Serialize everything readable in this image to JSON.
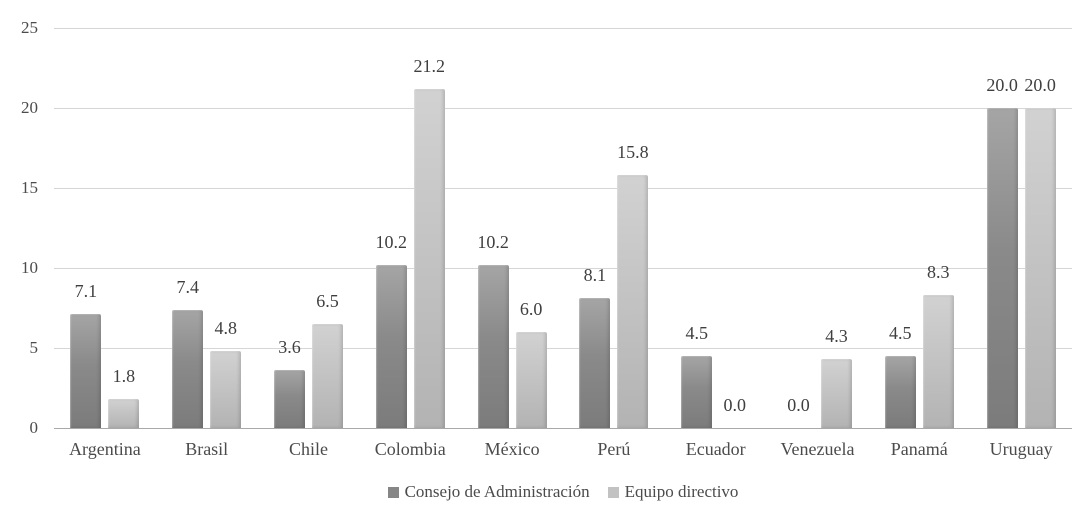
{
  "chart_data": {
    "type": "bar",
    "title": "",
    "categories": [
      "Argentina",
      "Brasil",
      "Chile",
      "Colombia",
      "México",
      "Perú",
      "Ecuador",
      "Venezuela",
      "Panamá",
      "Uruguay"
    ],
    "series": [
      {
        "name": "Consejo de Administración",
        "color": "#868686",
        "values": [
          7.1,
          7.4,
          3.6,
          10.2,
          10.2,
          8.1,
          4.5,
          0.0,
          4.5,
          20.0
        ]
      },
      {
        "name": "Equipo directivo",
        "color": "#c2c2c2",
        "values": [
          1.8,
          4.8,
          6.5,
          21.2,
          6.0,
          15.8,
          0.0,
          4.3,
          8.3,
          20.0
        ]
      }
    ],
    "xlabel": "",
    "ylabel": "",
    "ylim": [
      0,
      25
    ],
    "yticks": [
      0,
      5,
      10,
      15,
      20,
      25
    ],
    "grid": true,
    "legend_position": "bottom",
    "value_labels": true,
    "value_label_decimals": 1
  },
  "colors": {
    "background": "#ffffff",
    "gridline": "#d6d6d6",
    "axis_line": "#a9a9a9",
    "value_label_text": "#3f3f3f",
    "axis_text": "#4b4b4b"
  }
}
